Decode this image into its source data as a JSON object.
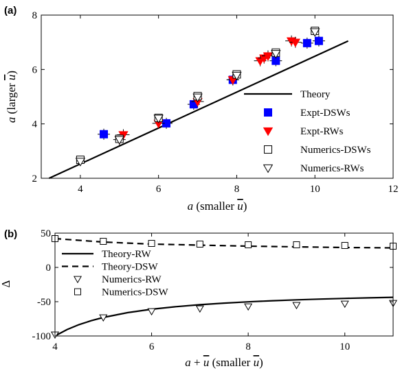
{
  "panels": [
    {
      "label": "(a)",
      "type": "scatter",
      "xlabel": "a (smaller ū)",
      "ylabel": "a (larger ū)",
      "xlim": [
        3,
        12
      ],
      "ylim": [
        2,
        8
      ],
      "xticks": [
        "4",
        "6",
        "8",
        "10",
        "12"
      ],
      "yticks": [
        "2",
        "4",
        "6",
        "8"
      ],
      "legend_position": "lower-right",
      "series": [
        {
          "name": "Theory",
          "style": "line-solid",
          "x": [
            3.2,
            10.85
          ],
          "y": [
            2.0,
            7.05
          ]
        },
        {
          "name": "Expt-DSWs",
          "style": "square-filled",
          "color": "#0000ff",
          "x": [
            4.6,
            6.2,
            6.9,
            7.9,
            9.0,
            9.8,
            10.1
          ],
          "y": [
            3.62,
            4.02,
            4.72,
            5.62,
            6.32,
            6.97,
            7.05
          ]
        },
        {
          "name": "Expt-RWs",
          "style": "triangle-down-filled",
          "color": "#ff0000",
          "x": [
            5.0,
            5.1,
            6.0,
            7.0,
            7.9,
            8.6,
            8.7,
            8.8,
            9.4,
            9.5
          ],
          "y": [
            3.42,
            3.6,
            4.02,
            4.82,
            5.62,
            6.32,
            6.42,
            6.5,
            7.05,
            7.0
          ]
        },
        {
          "name": "Numerics-DSWs",
          "style": "square-open",
          "x": [
            4.0,
            5.0,
            6.0,
            7.0,
            8.0,
            9.0,
            10.0
          ],
          "y": [
            2.68,
            3.45,
            4.22,
            5.02,
            5.82,
            6.62,
            7.42
          ]
        },
        {
          "name": "Numerics-RWs",
          "style": "triangle-down-open",
          "x": [
            4.0,
            5.0,
            6.0,
            7.0,
            8.0,
            9.0,
            10.0
          ],
          "y": [
            2.62,
            3.42,
            4.2,
            4.98,
            5.78,
            6.58,
            7.38
          ]
        }
      ]
    },
    {
      "label": "(b)",
      "type": "scatter",
      "xlabel": "a + ū (smaller ū)",
      "ylabel": "Δ",
      "xlim": [
        4,
        11
      ],
      "ylim": [
        -100,
        50
      ],
      "xticks": [
        "4",
        "6",
        "8",
        "10"
      ],
      "yticks": [
        "-100",
        "-50",
        "0",
        "50"
      ],
      "legend_position": "left-middle",
      "series": [
        {
          "name": "Theory-RW",
          "style": "line-solid",
          "x": [
            4.0,
            4.25,
            4.5,
            4.75,
            5.0,
            5.5,
            6.0,
            6.5,
            7.0,
            7.5,
            8.0,
            8.5,
            9.0,
            9.5,
            10.0,
            10.5,
            11.0
          ],
          "y": [
            -100,
            -90.6,
            -83.4,
            -77.7,
            -73.0,
            -66.0,
            -61.0,
            -57.3,
            -54.4,
            -52.1,
            -50.2,
            -48.6,
            -47.3,
            -46.2,
            -45.2,
            -44.4,
            -43.6
          ]
        },
        {
          "name": "Theory-DSW",
          "style": "line-dashed",
          "x": [
            4.0,
            5.0,
            6.0,
            7.0,
            8.0,
            9.0,
            10.0,
            11.0
          ],
          "y": [
            42,
            37,
            34,
            32.5,
            31,
            30,
            29,
            28.5
          ]
        },
        {
          "name": "Numerics-RW",
          "style": "triangle-down-open",
          "x": [
            4,
            5,
            6,
            7,
            8,
            9,
            10,
            11
          ],
          "y": [
            -98,
            -73,
            -64,
            -60,
            -57,
            -55,
            -53,
            -52
          ]
        },
        {
          "name": "Numerics-DSW",
          "style": "square-open",
          "x": [
            4,
            5,
            6,
            7,
            8,
            9,
            10,
            11
          ],
          "y": [
            42,
            38,
            35,
            34,
            33,
            33,
            32,
            31
          ]
        }
      ]
    }
  ]
}
